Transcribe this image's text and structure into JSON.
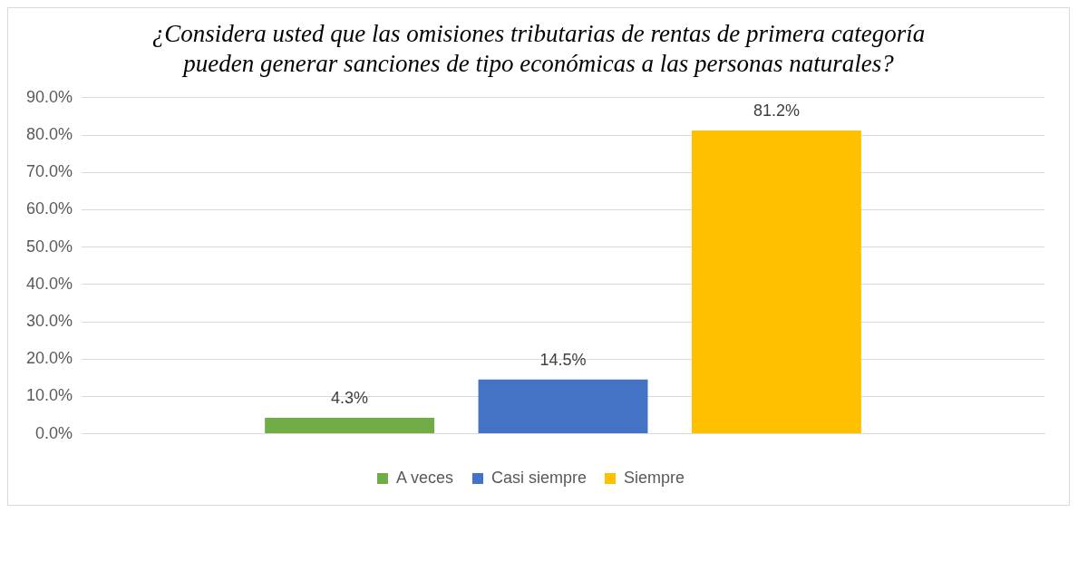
{
  "chart_data": {
    "type": "bar",
    "title": "¿Considera usted que las omisiones tributarias de rentas de primera categoría pueden generar sanciones de tipo económicas a las personas naturales?",
    "categories": [
      null
    ],
    "series": [
      {
        "name": "A veces",
        "color": "#70ad47",
        "values": [
          4.3
        ],
        "value_labels": [
          "4.3%"
        ]
      },
      {
        "name": "Casi siempre",
        "color": "#4472c4",
        "values": [
          14.5
        ],
        "value_labels": [
          "14.5%"
        ]
      },
      {
        "name": "Siempre",
        "color": "#ffc000",
        "values": [
          81.2
        ],
        "value_labels": [
          "81.2%"
        ]
      }
    ],
    "ylim": [
      0,
      90
    ],
    "yticks": [
      {
        "value": 0,
        "label": "0.0%"
      },
      {
        "value": 10,
        "label": "10.0%"
      },
      {
        "value": 20,
        "label": "20.0%"
      },
      {
        "value": 30,
        "label": "30.0%"
      },
      {
        "value": 40,
        "label": "40.0%"
      },
      {
        "value": 50,
        "label": "50.0%"
      },
      {
        "value": 60,
        "label": "60.0%"
      },
      {
        "value": 70,
        "label": "70.0%"
      },
      {
        "value": 80,
        "label": "80.0%"
      },
      {
        "value": 90,
        "label": "90.0%"
      }
    ],
    "grid": "y",
    "legend": "bottom"
  }
}
